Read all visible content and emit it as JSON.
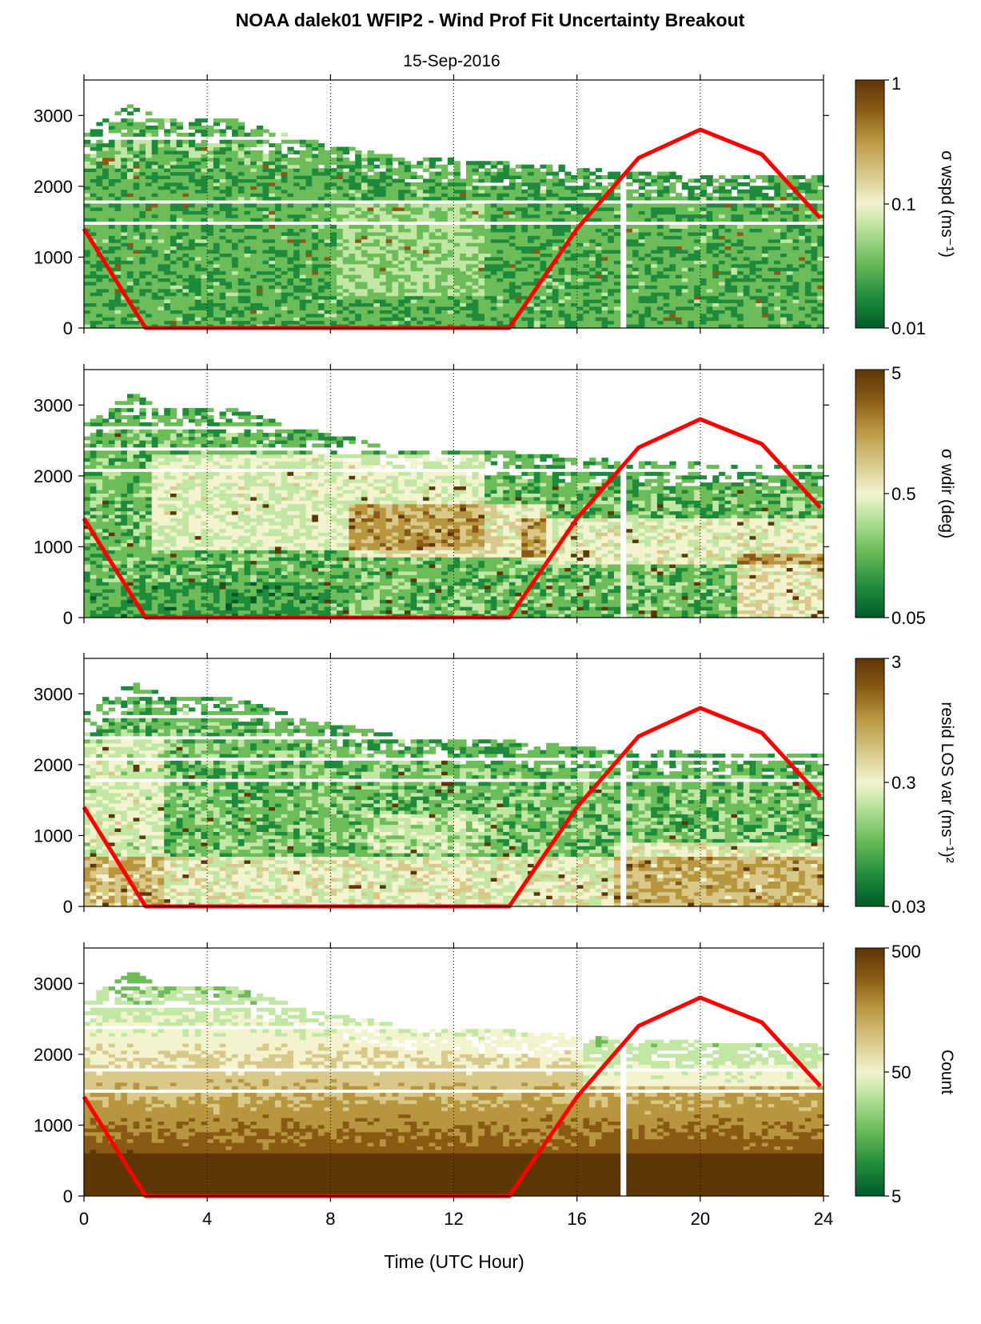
{
  "figure": {
    "title": "NOAA dalek01 WFIP2 - Wind Prof Fit Uncertainty Breakout",
    "subtitle": "15-Sep-2016",
    "xlabel": "Time (UTC Hour)"
  },
  "colors": {
    "sun_line": "#ff0000",
    "colormap": [
      "#005a28",
      "#1e8a3c",
      "#6cbd5a",
      "#c2e6a4",
      "#f3f3cf",
      "#d8c98a",
      "#b8963f",
      "#8a5a14",
      "#5e3706"
    ],
    "background": "#ffffff"
  },
  "chart_data": [
    {
      "type": "heatmap",
      "ylim": [
        0,
        3500
      ],
      "xlim": [
        0,
        24
      ],
      "x_ticks": [
        "0",
        "4",
        "8",
        "12",
        "16",
        "20",
        "24"
      ],
      "y_ticks": [
        "0",
        "1000",
        "2000",
        "3000"
      ],
      "colorbar_label": "σ wspd (ms⁻¹)",
      "colorbar_scale": "log",
      "colorbar_ticks": [
        "0.01",
        "0.1",
        "1"
      ],
      "grid": "vertical dotted at 4-hour intervals",
      "data_top_height": [
        [
          0.1,
          2750
        ],
        [
          0.8,
          3000
        ],
        [
          1.5,
          3150
        ],
        [
          2.5,
          2950
        ],
        [
          3.5,
          2950
        ],
        [
          5,
          2900
        ],
        [
          6.5,
          2700
        ],
        [
          8,
          2550
        ],
        [
          10,
          2400
        ],
        [
          12,
          2350
        ],
        [
          14,
          2300
        ],
        [
          17,
          2200
        ],
        [
          20,
          2150
        ],
        [
          23.9,
          2150
        ]
      ],
      "gap_hours": [
        17.3,
        17.6
      ],
      "sun_elevation_line": [
        [
          0,
          1400
        ],
        [
          2,
          0
        ],
        [
          13.8,
          0
        ],
        [
          16,
          1400
        ],
        [
          18,
          2400
        ],
        [
          20,
          2800
        ],
        [
          22,
          2450
        ],
        [
          23.9,
          1550
        ]
      ]
    },
    {
      "type": "heatmap",
      "ylim": [
        0,
        3500
      ],
      "xlim": [
        0,
        24
      ],
      "x_ticks": [
        "0",
        "4",
        "8",
        "12",
        "16",
        "20",
        "24"
      ],
      "y_ticks": [
        "0",
        "1000",
        "2000",
        "3000"
      ],
      "colorbar_label": "σ wdir (deg)",
      "colorbar_scale": "log",
      "colorbar_ticks": [
        "0.05",
        "0.5",
        "5"
      ],
      "grid": "vertical dotted at 4-hour intervals",
      "data_top_height": [
        [
          0.1,
          2750
        ],
        [
          0.8,
          3000
        ],
        [
          1.5,
          3150
        ],
        [
          2.5,
          2950
        ],
        [
          3.5,
          2950
        ],
        [
          5,
          2900
        ],
        [
          6.5,
          2700
        ],
        [
          8,
          2550
        ],
        [
          10,
          2400
        ],
        [
          12,
          2350
        ],
        [
          14,
          2300
        ],
        [
          17,
          2200
        ],
        [
          20,
          2150
        ],
        [
          23.9,
          2150
        ]
      ],
      "gap_hours": [
        17.3,
        17.6
      ],
      "sun_elevation_line": [
        [
          0,
          1400
        ],
        [
          2,
          0
        ],
        [
          13.8,
          0
        ],
        [
          16,
          1400
        ],
        [
          18,
          2400
        ],
        [
          20,
          2800
        ],
        [
          22,
          2450
        ],
        [
          23.9,
          1550
        ]
      ]
    },
    {
      "type": "heatmap",
      "ylim": [
        0,
        3500
      ],
      "xlim": [
        0,
        24
      ],
      "x_ticks": [
        "0",
        "4",
        "8",
        "12",
        "16",
        "20",
        "24"
      ],
      "y_ticks": [
        "0",
        "1000",
        "2000",
        "3000"
      ],
      "colorbar_label": "resid LOS var (ms⁻¹)²",
      "colorbar_scale": "log",
      "colorbar_ticks": [
        "0.03",
        "0.3",
        "3"
      ],
      "grid": "vertical dotted at 4-hour intervals",
      "data_top_height": [
        [
          0.1,
          2750
        ],
        [
          0.8,
          3000
        ],
        [
          1.5,
          3150
        ],
        [
          2.5,
          2950
        ],
        [
          3.5,
          2950
        ],
        [
          5,
          2900
        ],
        [
          6.5,
          2700
        ],
        [
          8,
          2550
        ],
        [
          10,
          2400
        ],
        [
          12,
          2350
        ],
        [
          14,
          2300
        ],
        [
          17,
          2200
        ],
        [
          20,
          2150
        ],
        [
          23.9,
          2150
        ]
      ],
      "gap_hours": [
        17.3,
        17.6
      ],
      "sun_elevation_line": [
        [
          0,
          1400
        ],
        [
          2,
          0
        ],
        [
          13.8,
          0
        ],
        [
          16,
          1400
        ],
        [
          18,
          2400
        ],
        [
          20,
          2800
        ],
        [
          22,
          2450
        ],
        [
          23.9,
          1550
        ]
      ]
    },
    {
      "type": "heatmap",
      "ylim": [
        0,
        3500
      ],
      "xlim": [
        0,
        24
      ],
      "x_ticks": [
        "0",
        "4",
        "8",
        "12",
        "16",
        "20",
        "24"
      ],
      "y_ticks": [
        "0",
        "1000",
        "2000",
        "3000"
      ],
      "colorbar_label": "Count",
      "colorbar_scale": "log",
      "colorbar_ticks": [
        "5",
        "50",
        "500"
      ],
      "grid": "vertical dotted at 4-hour intervals",
      "data_top_height": [
        [
          0.1,
          2750
        ],
        [
          0.8,
          3000
        ],
        [
          1.5,
          3150
        ],
        [
          2.5,
          2950
        ],
        [
          3.5,
          2950
        ],
        [
          5,
          2900
        ],
        [
          6.5,
          2700
        ],
        [
          8,
          2550
        ],
        [
          10,
          2400
        ],
        [
          12,
          2350
        ],
        [
          14,
          2300
        ],
        [
          17,
          2200
        ],
        [
          20,
          2150
        ],
        [
          23.9,
          2150
        ]
      ],
      "gap_hours": [
        17.3,
        17.6
      ],
      "sun_elevation_line": [
        [
          0,
          1400
        ],
        [
          2,
          0
        ],
        [
          13.8,
          0
        ],
        [
          16,
          1400
        ],
        [
          18,
          2400
        ],
        [
          20,
          2800
        ],
        [
          22,
          2450
        ],
        [
          23.9,
          1550
        ]
      ]
    }
  ]
}
